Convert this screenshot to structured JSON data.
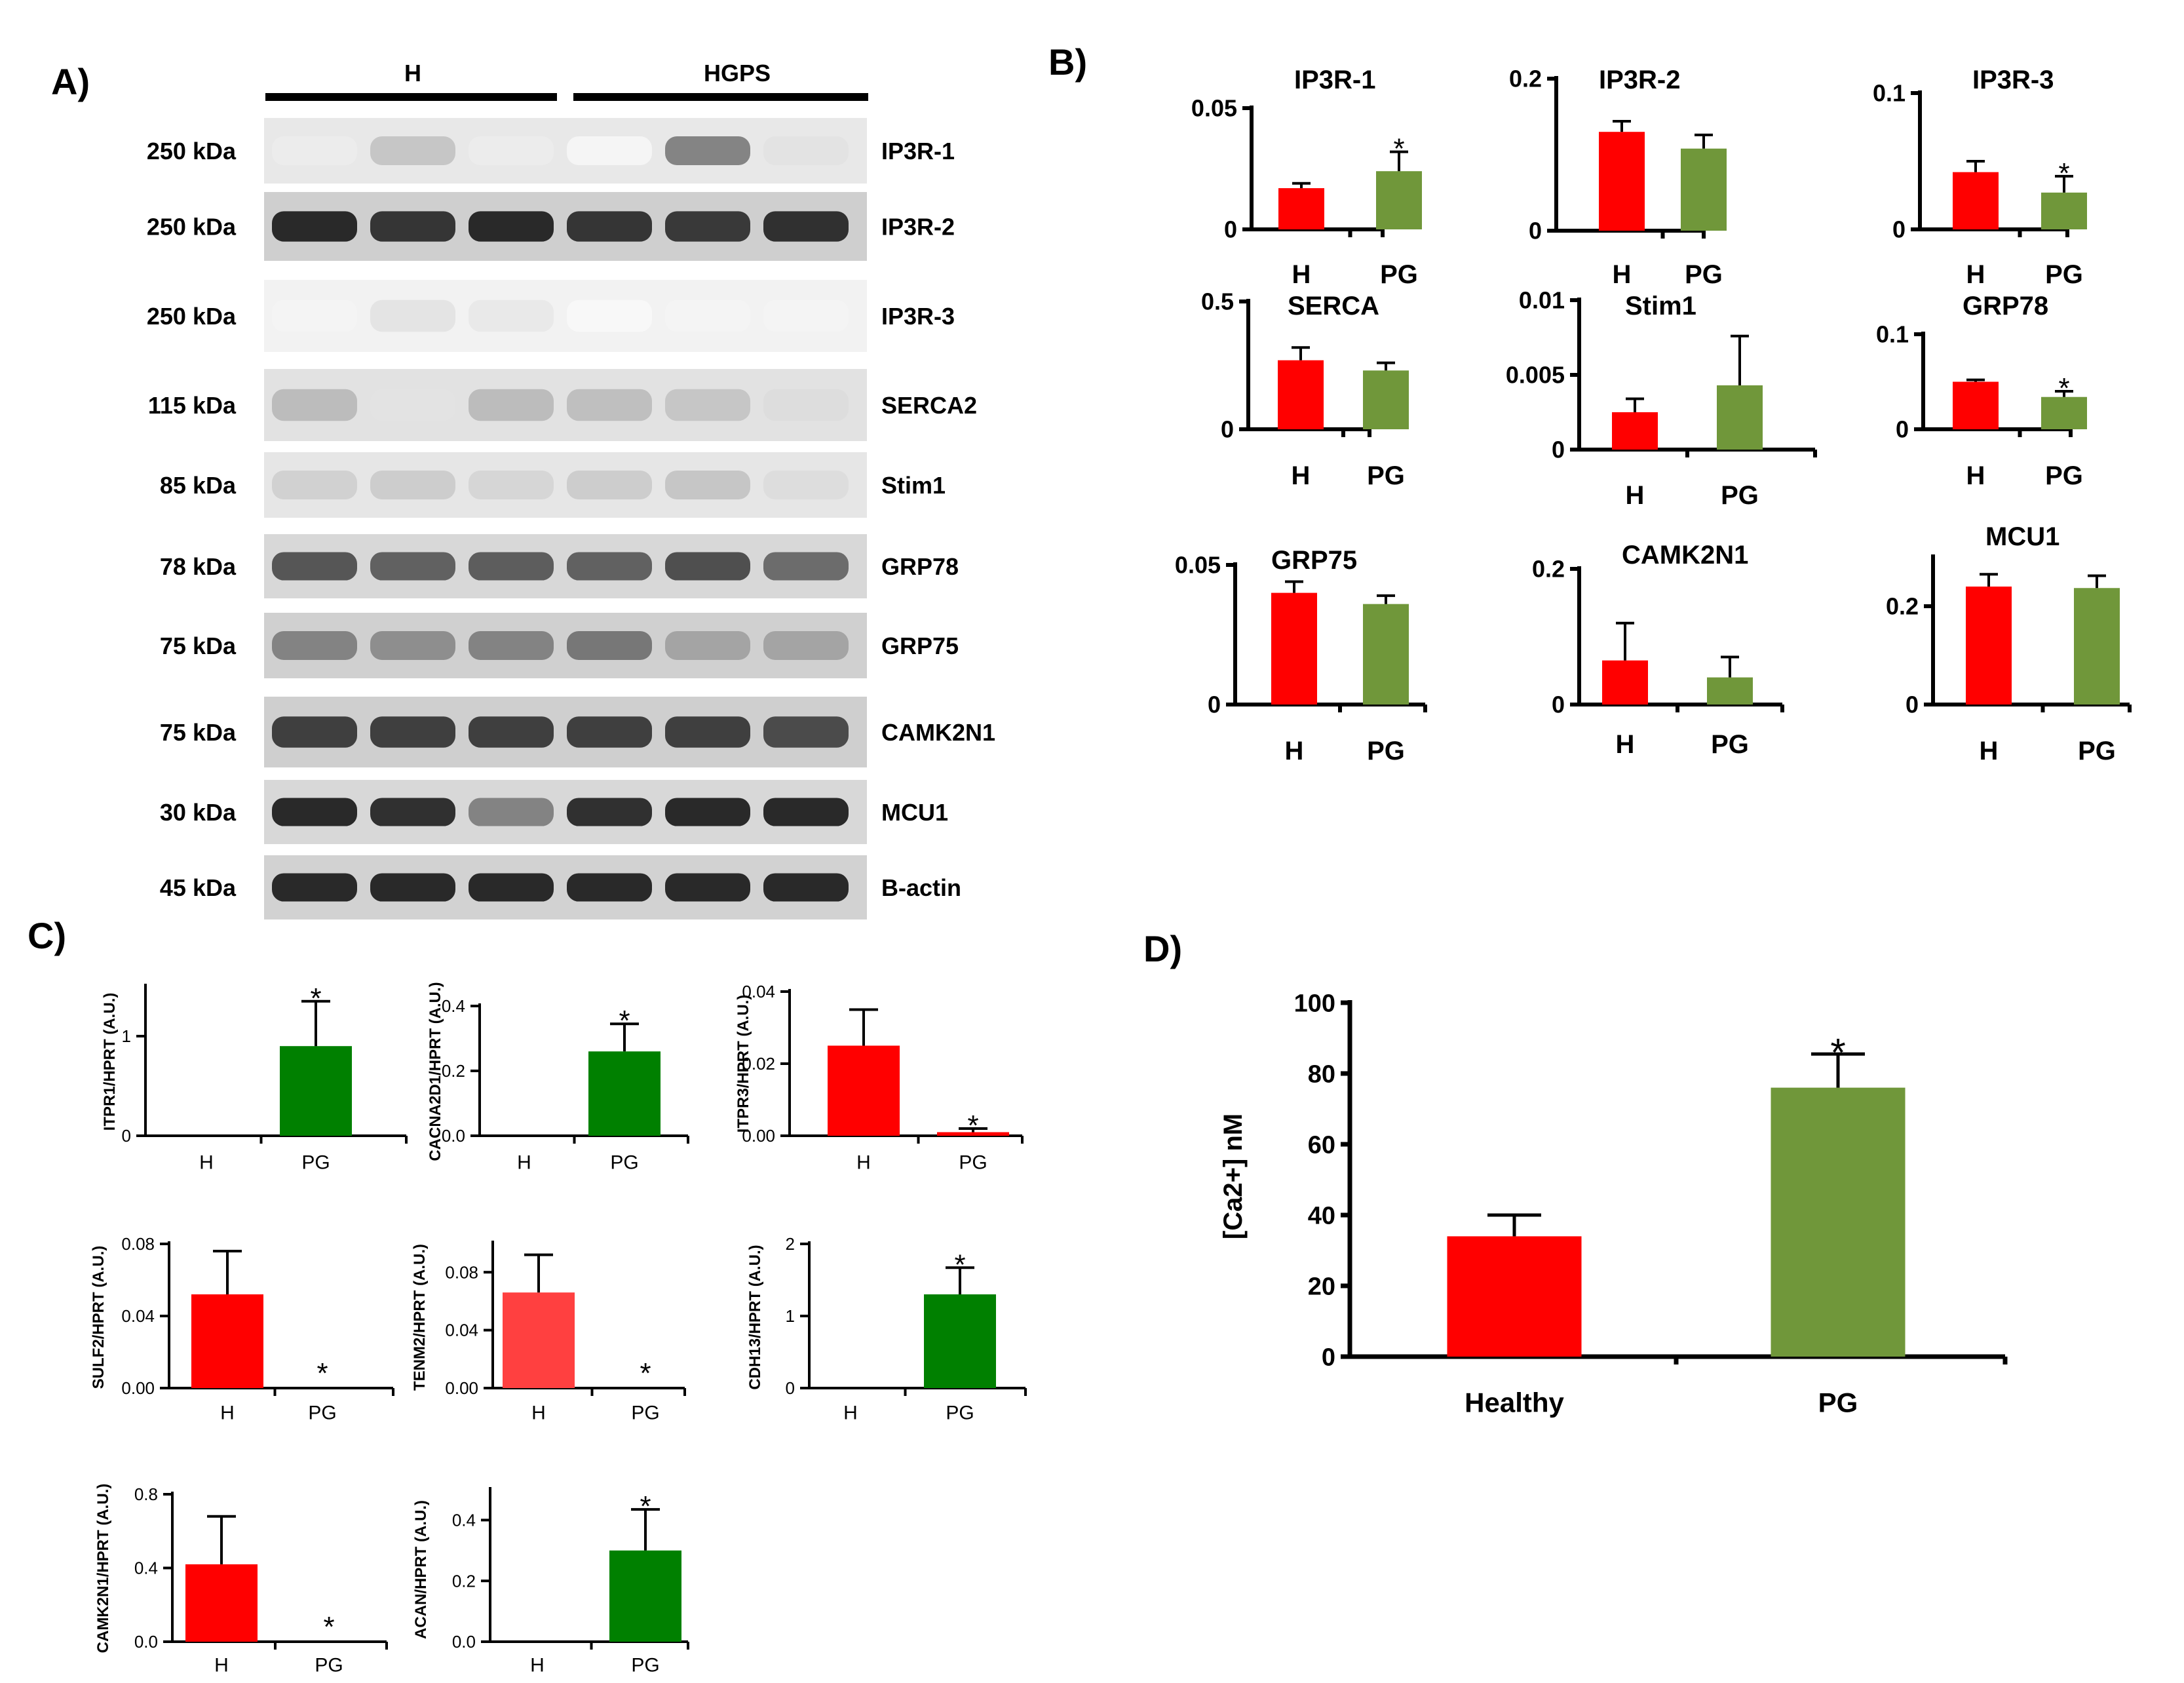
{
  "panel_labels": {
    "a": "A)",
    "b": "B)",
    "c": "C)",
    "d": "D)"
  },
  "blot": {
    "groups": [
      "H",
      "HGPS"
    ],
    "rows": [
      {
        "kda": "250 kDa",
        "protein": "IP3R-1",
        "intensity": [
          0.08,
          0.25,
          0.08,
          0.04,
          0.55,
          0.12
        ],
        "bg": "#e8e8e8"
      },
      {
        "kda": "250 kDa",
        "protein": "IP3R-2",
        "intensity": [
          0.95,
          0.9,
          0.95,
          0.9,
          0.88,
          0.92
        ],
        "bg": "#cfcfcf"
      },
      {
        "kda": "250 kDa",
        "protein": "IP3R-3",
        "intensity": [
          0.05,
          0.12,
          0.1,
          0.03,
          0.05,
          0.05
        ],
        "bg": "#f2f2f2"
      },
      {
        "kda": "115 kDa",
        "protein": "SERCA2",
        "intensity": [
          0.3,
          0.12,
          0.3,
          0.28,
          0.25,
          0.15
        ],
        "bg": "#e2e2e2"
      },
      {
        "kda": "85 kDa",
        "protein": "Stim1",
        "intensity": [
          0.2,
          0.22,
          0.18,
          0.22,
          0.25,
          0.15
        ],
        "bg": "#e6e6e6"
      },
      {
        "kda": "78 kDa",
        "protein": "GRP78",
        "intensity": [
          0.75,
          0.7,
          0.72,
          0.7,
          0.78,
          0.65
        ],
        "bg": "#d8d8d8"
      },
      {
        "kda": "75 kDa",
        "protein": "GRP75",
        "intensity": [
          0.55,
          0.5,
          0.55,
          0.6,
          0.4,
          0.4
        ],
        "bg": "#d0d0d0"
      },
      {
        "kda": "75 kDa",
        "protein": "CAMK2N1",
        "intensity": [
          0.85,
          0.85,
          0.85,
          0.85,
          0.85,
          0.8
        ],
        "bg": "#cfcfcf"
      },
      {
        "kda": "30 kDa",
        "protein": "MCU1",
        "intensity": [
          0.95,
          0.92,
          0.55,
          0.92,
          0.95,
          0.95
        ],
        "bg": "#d8d8d8"
      },
      {
        "kda": "45 kDa",
        "protein": "B-actin",
        "intensity": [
          0.95,
          0.95,
          0.95,
          0.95,
          0.95,
          0.95
        ],
        "bg": "#d2d2d2"
      }
    ]
  },
  "chart_data": [
    {
      "panel": "B",
      "type": "bar",
      "title": "IP3R-1",
      "categories": [
        "H",
        "PG"
      ],
      "values": [
        0.017,
        0.024
      ],
      "errors": [
        0.002,
        0.008
      ],
      "ylim": [
        0,
        0.05
      ],
      "yticks": [
        "0",
        "0.05"
      ],
      "colors": [
        "#ff0000",
        "#70973a"
      ],
      "star": [
        false,
        true
      ]
    },
    {
      "panel": "B",
      "type": "bar",
      "title": "IP3R-2",
      "categories": [
        "H",
        "PG"
      ],
      "values": [
        0.13,
        0.108
      ],
      "errors": [
        0.014,
        0.018
      ],
      "ylim": [
        0,
        0.2
      ],
      "yticks": [
        "0",
        "0.2"
      ],
      "colors": [
        "#ff0000",
        "#70973a"
      ],
      "star": [
        false,
        false
      ]
    },
    {
      "panel": "B",
      "type": "bar",
      "title": "IP3R-3",
      "categories": [
        "H",
        "PG"
      ],
      "values": [
        0.042,
        0.027
      ],
      "errors": [
        0.008,
        0.012
      ],
      "ylim": [
        0,
        0.1
      ],
      "yticks": [
        "0",
        "0.1"
      ],
      "colors": [
        "#ff0000",
        "#70973a"
      ],
      "star": [
        false,
        true
      ]
    },
    {
      "panel": "B",
      "type": "bar",
      "title": "SERCA",
      "categories": [
        "H",
        "PG"
      ],
      "values": [
        0.27,
        0.23
      ],
      "errors": [
        0.05,
        0.03
      ],
      "ylim": [
        0,
        0.5
      ],
      "yticks": [
        "0",
        "0.5"
      ],
      "colors": [
        "#ff0000",
        "#70973a"
      ],
      "star": [
        false,
        false
      ]
    },
    {
      "panel": "B",
      "type": "bar",
      "title": "Stim1",
      "categories": [
        "H",
        "PG"
      ],
      "values": [
        0.0025,
        0.0043
      ],
      "errors": [
        0.0009,
        0.0033
      ],
      "ylim": [
        0,
        0.01
      ],
      "yticks": [
        "0",
        "0.005",
        "0.01"
      ],
      "colors": [
        "#ff0000",
        "#70973a"
      ],
      "star": [
        false,
        false
      ]
    },
    {
      "panel": "B",
      "type": "bar",
      "title": "GRP78",
      "categories": [
        "H",
        "PG"
      ],
      "values": [
        0.05,
        0.034
      ],
      "errors": [
        0.002,
        0.006
      ],
      "ylim": [
        0,
        0.1
      ],
      "yticks": [
        "0",
        "0.1"
      ],
      "colors": [
        "#ff0000",
        "#70973a"
      ],
      "star": [
        false,
        true
      ]
    },
    {
      "panel": "B",
      "type": "bar",
      "title": "GRP75",
      "categories": [
        "H",
        "PG"
      ],
      "values": [
        0.04,
        0.036
      ],
      "errors": [
        0.004,
        0.003
      ],
      "ylim": [
        0,
        0.05
      ],
      "yticks": [
        "0",
        "0.05"
      ],
      "colors": [
        "#ff0000",
        "#70973a"
      ],
      "star": [
        false,
        false
      ]
    },
    {
      "panel": "B",
      "type": "bar",
      "title": "CAMK2N1",
      "categories": [
        "H",
        "PG"
      ],
      "values": [
        0.065,
        0.04
      ],
      "errors": [
        0.055,
        0.03
      ],
      "ylim": [
        0,
        0.2
      ],
      "yticks": [
        "0",
        "0.2"
      ],
      "colors": [
        "#ff0000",
        "#70973a"
      ],
      "star": [
        false,
        false
      ]
    },
    {
      "panel": "B",
      "type": "bar",
      "title": "MCU1",
      "categories": [
        "H",
        "PG"
      ],
      "values": [
        0.24,
        0.237
      ],
      "errors": [
        0.025,
        0.025
      ],
      "ylim": [
        0,
        0.3
      ],
      "yticks": [
        "0",
        "0.2"
      ],
      "ytick_values": [
        0,
        0.2
      ],
      "colors": [
        "#ff0000",
        "#70973a"
      ],
      "star": [
        false,
        false
      ]
    },
    {
      "panel": "C",
      "type": "bar",
      "ylabel": "ITPR1/HPRT (A.U.)",
      "categories": [
        "H",
        "PG"
      ],
      "values": [
        0,
        0.9
      ],
      "errors": [
        0,
        0.45
      ],
      "ylim": [
        0,
        1.5
      ],
      "yticks": [
        "0",
        "1"
      ],
      "ytick_values": [
        0,
        1
      ],
      "colors": [
        "#ff0000",
        "#008000"
      ],
      "star": [
        false,
        true
      ]
    },
    {
      "panel": "C",
      "type": "bar",
      "ylabel": "CACNA2D1/HPRT (A.U.)",
      "categories": [
        "H",
        "PG"
      ],
      "values": [
        0,
        0.26
      ],
      "errors": [
        0,
        0.085
      ],
      "ylim": [
        0,
        0.4
      ],
      "yticks": [
        "0.0",
        "0.2",
        "0.4"
      ],
      "colors": [
        "#ff0000",
        "#008000"
      ],
      "star": [
        false,
        true
      ]
    },
    {
      "panel": "C",
      "type": "bar",
      "ylabel": "ITPR3/HPRT (A.U.)",
      "categories": [
        "H",
        "PG"
      ],
      "values": [
        0.025,
        0.001
      ],
      "errors": [
        0.01,
        0.001
      ],
      "ylim": [
        0,
        0.04
      ],
      "yticks": [
        "0.00",
        "0.02",
        "0.04"
      ],
      "colors": [
        "#ff0000",
        "#ff0000"
      ],
      "star": [
        false,
        true
      ]
    },
    {
      "panel": "C",
      "type": "bar",
      "ylabel": "SULF2/HPRT (A.U.)",
      "categories": [
        "H",
        "PG"
      ],
      "values": [
        0.052,
        0
      ],
      "errors": [
        0.024,
        0
      ],
      "ylim": [
        0,
        0.08
      ],
      "yticks": [
        "0.00",
        "0.04",
        "0.08"
      ],
      "colors": [
        "#ff0000",
        "#ff0000"
      ],
      "star": [
        false,
        true
      ]
    },
    {
      "panel": "C",
      "type": "bar",
      "ylabel": "TENM2/HPRT (A.U.)",
      "categories": [
        "H",
        "PG"
      ],
      "values": [
        0.066,
        0
      ],
      "errors": [
        0.026,
        0
      ],
      "ylim": [
        0,
        0.1
      ],
      "yticks": [
        "0.00",
        "0.04",
        "0.08"
      ],
      "ytick_values": [
        0,
        0.04,
        0.08
      ],
      "colors": [
        "#ff4040",
        "#ff4040"
      ],
      "star": [
        false,
        true
      ]
    },
    {
      "panel": "C",
      "type": "bar",
      "ylabel": "CDH13/HPRT (A.U.)",
      "categories": [
        "H",
        "PG"
      ],
      "values": [
        0,
        1.3
      ],
      "errors": [
        0,
        0.37
      ],
      "ylim": [
        0,
        2
      ],
      "yticks": [
        "0",
        "1",
        "2"
      ],
      "colors": [
        "#ff0000",
        "#008000"
      ],
      "star": [
        false,
        true
      ]
    },
    {
      "panel": "C",
      "type": "bar",
      "ylabel": "CAMK2N1/HPRT (A.U.)",
      "categories": [
        "H",
        "PG"
      ],
      "values": [
        0.42,
        0
      ],
      "errors": [
        0.26,
        0
      ],
      "ylim": [
        0,
        0.8
      ],
      "yticks": [
        "0.0",
        "0.4",
        "0.8"
      ],
      "colors": [
        "#ff0000",
        "#ff0000"
      ],
      "star": [
        false,
        true
      ]
    },
    {
      "panel": "C",
      "type": "bar",
      "ylabel": "ACAN/HPRT (A.U.)",
      "categories": [
        "H",
        "PG"
      ],
      "values": [
        0,
        0.3
      ],
      "errors": [
        0,
        0.135
      ],
      "ylim": [
        0,
        0.5
      ],
      "yticks": [
        "0.0",
        "0.2",
        "0.4"
      ],
      "ytick_values": [
        0,
        0.2,
        0.4
      ],
      "colors": [
        "#ff0000",
        "#008000"
      ],
      "star": [
        false,
        true
      ]
    },
    {
      "panel": "D",
      "type": "bar",
      "ylabel": "[Ca2+] nM",
      "categories": [
        "Healthy",
        "PG"
      ],
      "values": [
        34,
        76
      ],
      "errors": [
        6,
        9.5
      ],
      "ylim": [
        0,
        100
      ],
      "yticks": [
        "0",
        "20",
        "40",
        "60",
        "80",
        "100"
      ],
      "colors": [
        "#ff0000",
        "#70973a"
      ],
      "star": [
        false,
        true
      ]
    }
  ],
  "star_symbol": "*"
}
